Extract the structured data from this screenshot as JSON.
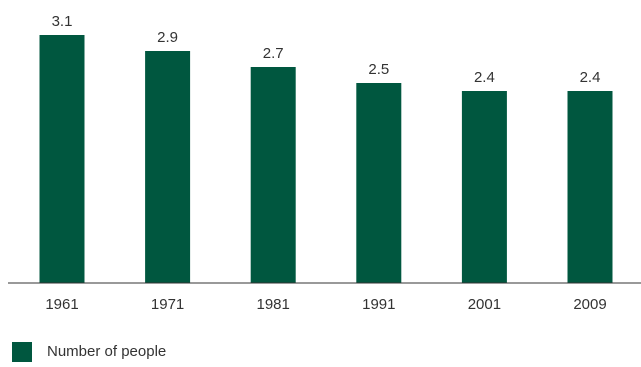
{
  "chart_data": {
    "type": "bar",
    "categories": [
      "1961",
      "1971",
      "1981",
      "1991",
      "2001",
      "2009"
    ],
    "series": [
      {
        "name": "Number of people",
        "values": [
          3.1,
          2.9,
          2.7,
          2.5,
          2.4,
          2.4
        ],
        "color": "#00573f"
      }
    ],
    "data_labels": [
      "3.1",
      "2.9",
      "2.7",
      "2.5",
      "2.4",
      "2.4"
    ],
    "title": "",
    "xlabel": "",
    "ylabel": "",
    "ylim": [
      0,
      3.1
    ],
    "grid": false,
    "legend_position": "bottom-left"
  },
  "legend": {
    "label": "Number of people",
    "color": "#00573f"
  }
}
